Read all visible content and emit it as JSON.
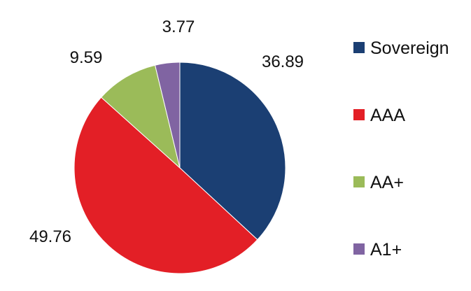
{
  "chart_data": {
    "type": "pie",
    "title": "",
    "series": [
      {
        "name": "Sovereign",
        "value": 36.89,
        "color": "#1b3f73",
        "label": "36.89"
      },
      {
        "name": "AAA",
        "value": 49.76,
        "color": "#e31f26",
        "label": "49.76"
      },
      {
        "name": "AA+",
        "value": 9.59,
        "color": "#9bbb59",
        "label": "9.59"
      },
      {
        "name": "A1+",
        "value": 3.77,
        "color": "#8064a2",
        "label": "3.77"
      }
    ],
    "legend_position": "right",
    "start_angle_deg": 0,
    "direction": "clockwise"
  }
}
